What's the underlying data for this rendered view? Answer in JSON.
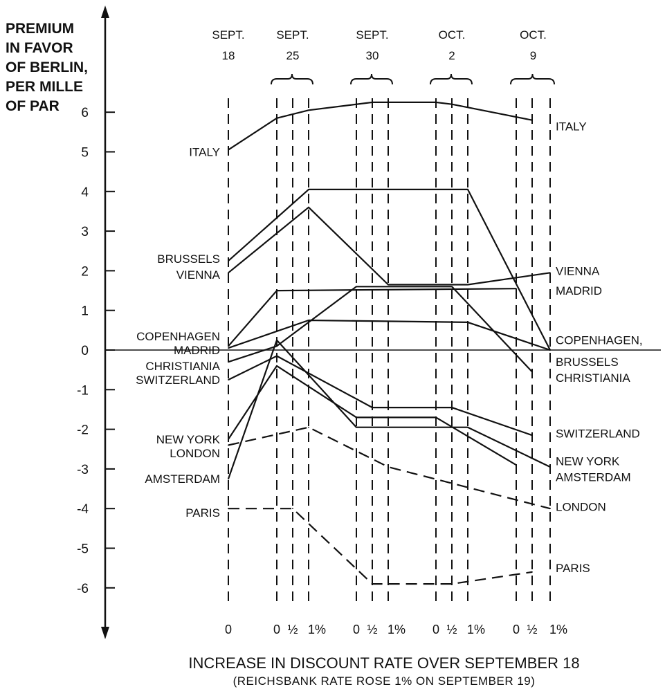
{
  "chart_data": {
    "type": "line",
    "ylabel_lines": [
      "PREMIUM",
      "IN FAVOR",
      "OF BERLIN,",
      "PER MILLE",
      "OF PAR"
    ],
    "xlabel": "INCREASE IN DISCOUNT RATE OVER SEPTEMBER 18",
    "xsubtitle": "(REICHSBANK RATE ROSE 1% ON SEPTEMBER 19)",
    "ylim": [
      -7,
      7
    ],
    "yticks": [
      6,
      5,
      4,
      3,
      2,
      1,
      0,
      -1,
      -2,
      -3,
      -4,
      -5,
      -6
    ],
    "date_groups": [
      {
        "month": "SEPT.",
        "day": "18"
      },
      {
        "month": "SEPT.",
        "day": "25"
      },
      {
        "month": "SEPT.",
        "day": "30"
      },
      {
        "month": "OCT.",
        "day": "2"
      },
      {
        "month": "OCT.",
        "day": "9"
      }
    ],
    "x_ticks": [
      {
        "id": "s18_0",
        "label": "0"
      },
      {
        "id": "s25_0",
        "label": "0"
      },
      {
        "id": "s25_h",
        "label": "½"
      },
      {
        "id": "s25_1",
        "label": "1%"
      },
      {
        "id": "s30_0",
        "label": "0"
      },
      {
        "id": "s30_h",
        "label": "½"
      },
      {
        "id": "s30_1",
        "label": "1%"
      },
      {
        "id": "o2_0",
        "label": "0"
      },
      {
        "id": "o2_h",
        "label": "½"
      },
      {
        "id": "o2_1",
        "label": "1%"
      },
      {
        "id": "o9_0",
        "label": "0"
      },
      {
        "id": "o9_h",
        "label": "½"
      },
      {
        "id": "o9_1",
        "label": "1%"
      }
    ],
    "series": [
      {
        "name": "ITALY",
        "style": "solid",
        "points": [
          [
            "s18_0",
            5.05
          ],
          [
            "s25_0",
            5.85
          ],
          [
            "s25_1",
            6.05
          ],
          [
            "s30_h",
            6.25
          ],
          [
            "o2_0",
            6.25
          ],
          [
            "o2_h",
            6.2
          ],
          [
            "o9_h",
            5.8
          ]
        ]
      },
      {
        "name": "BRUSSELS",
        "style": "solid",
        "points": [
          [
            "s18_0",
            2.25
          ],
          [
            "s25_1",
            4.05
          ],
          [
            "o2_1",
            4.05
          ],
          [
            "o9_1",
            0.0
          ]
        ]
      },
      {
        "name": "VIENNA",
        "style": "solid",
        "points": [
          [
            "s18_0",
            1.95
          ],
          [
            "s25_1",
            3.6
          ],
          [
            "s30_1",
            1.65
          ],
          [
            "o2_1",
            1.65
          ],
          [
            "o9_1",
            1.95
          ]
        ]
      },
      {
        "name": "COPENHAGEN",
        "style": "solid",
        "points": [
          [
            "s18_0",
            0.1
          ],
          [
            "s25_0",
            1.5
          ],
          [
            "o9_0",
            1.55
          ]
        ]
      },
      {
        "name": "MADRID",
        "style": "solid",
        "points": [
          [
            "s18_0",
            0.05
          ],
          [
            "s25_1",
            0.75
          ],
          [
            "o2_1",
            0.7
          ],
          [
            "o9_1",
            0.0
          ]
        ]
      },
      {
        "name": "CHRISTIANIA",
        "style": "solid",
        "points": [
          [
            "s18_0",
            -0.3
          ],
          [
            "s25_0",
            0.1
          ],
          [
            "s30_0",
            1.6
          ],
          [
            "o2_h",
            1.6
          ],
          [
            "o9_h",
            -0.55
          ]
        ]
      },
      {
        "name": "SWITZERLAND",
        "style": "solid",
        "points": [
          [
            "s18_0",
            -0.75
          ],
          [
            "s25_0",
            -0.15
          ],
          [
            "s30_h",
            -1.45
          ],
          [
            "o2_h",
            -1.45
          ],
          [
            "o9_h",
            -2.15
          ]
        ]
      },
      {
        "name": "NEW YORK",
        "style": "solid",
        "points": [
          [
            "s18_0",
            -2.25
          ],
          [
            "s25_0",
            -0.4
          ],
          [
            "s30_0",
            -1.7
          ],
          [
            "o2_0",
            -1.7
          ],
          [
            "o9_0",
            -2.9
          ]
        ]
      },
      {
        "name": "AMSTERDAM",
        "style": "solid",
        "points": [
          [
            "s18_0",
            -3.25
          ],
          [
            "s25_0",
            0.25
          ],
          [
            "s30_0",
            -1.95
          ],
          [
            "o2_1",
            -1.95
          ],
          [
            "o9_1",
            -2.95
          ]
        ]
      },
      {
        "name": "LONDON",
        "style": "dashed",
        "points": [
          [
            "s18_0",
            -2.4
          ],
          [
            "s25_1",
            -1.95
          ],
          [
            "s30_1",
            -2.95
          ],
          [
            "o9_1",
            -4.0
          ]
        ]
      },
      {
        "name": "PARIS",
        "style": "dashed",
        "points": [
          [
            "s18_0",
            -4.0
          ],
          [
            "s25_h",
            -4.0
          ],
          [
            "s30_h",
            -5.9
          ],
          [
            "o2_h",
            -5.9
          ],
          [
            "o9_h",
            -5.6
          ]
        ]
      }
    ],
    "left_labels": [
      {
        "text": "ITALY",
        "y": 5.0
      },
      {
        "text": "BRUSSELS",
        "y": 2.3
      },
      {
        "text": "VIENNA",
        "y": 1.9
      },
      {
        "text": "COPENHAGEN",
        "y": 0.35
      },
      {
        "text": "MADRID",
        "y": 0.0
      },
      {
        "text": "CHRISTIANIA",
        "y": -0.4
      },
      {
        "text": "SWITZERLAND",
        "y": -0.75
      },
      {
        "text": "NEW YORK",
        "y": -2.25
      },
      {
        "text": "LONDON",
        "y": -2.6
      },
      {
        "text": "AMSTERDAM",
        "y": -3.25
      },
      {
        "text": "PARIS",
        "y": -4.1
      }
    ],
    "right_labels": [
      {
        "text": "ITALY",
        "y": 5.65
      },
      {
        "text": "VIENNA",
        "y": 2.0
      },
      {
        "text": "MADRID",
        "y": 1.5
      },
      {
        "text": "COPENHAGEN,",
        "y": 0.25
      },
      {
        "text": "BRUSSELS",
        "y": -0.3
      },
      {
        "text": "CHRISTIANIA",
        "y": -0.7
      },
      {
        "text": "SWITZERLAND",
        "y": -2.1
      },
      {
        "text": "NEW YORK",
        "y": -2.8
      },
      {
        "text": "AMSTERDAM",
        "y": -3.2
      },
      {
        "text": "LONDON",
        "y": -3.95
      },
      {
        "text": "PARIS",
        "y": -5.5
      }
    ],
    "grid": false,
    "zero_line": true
  }
}
